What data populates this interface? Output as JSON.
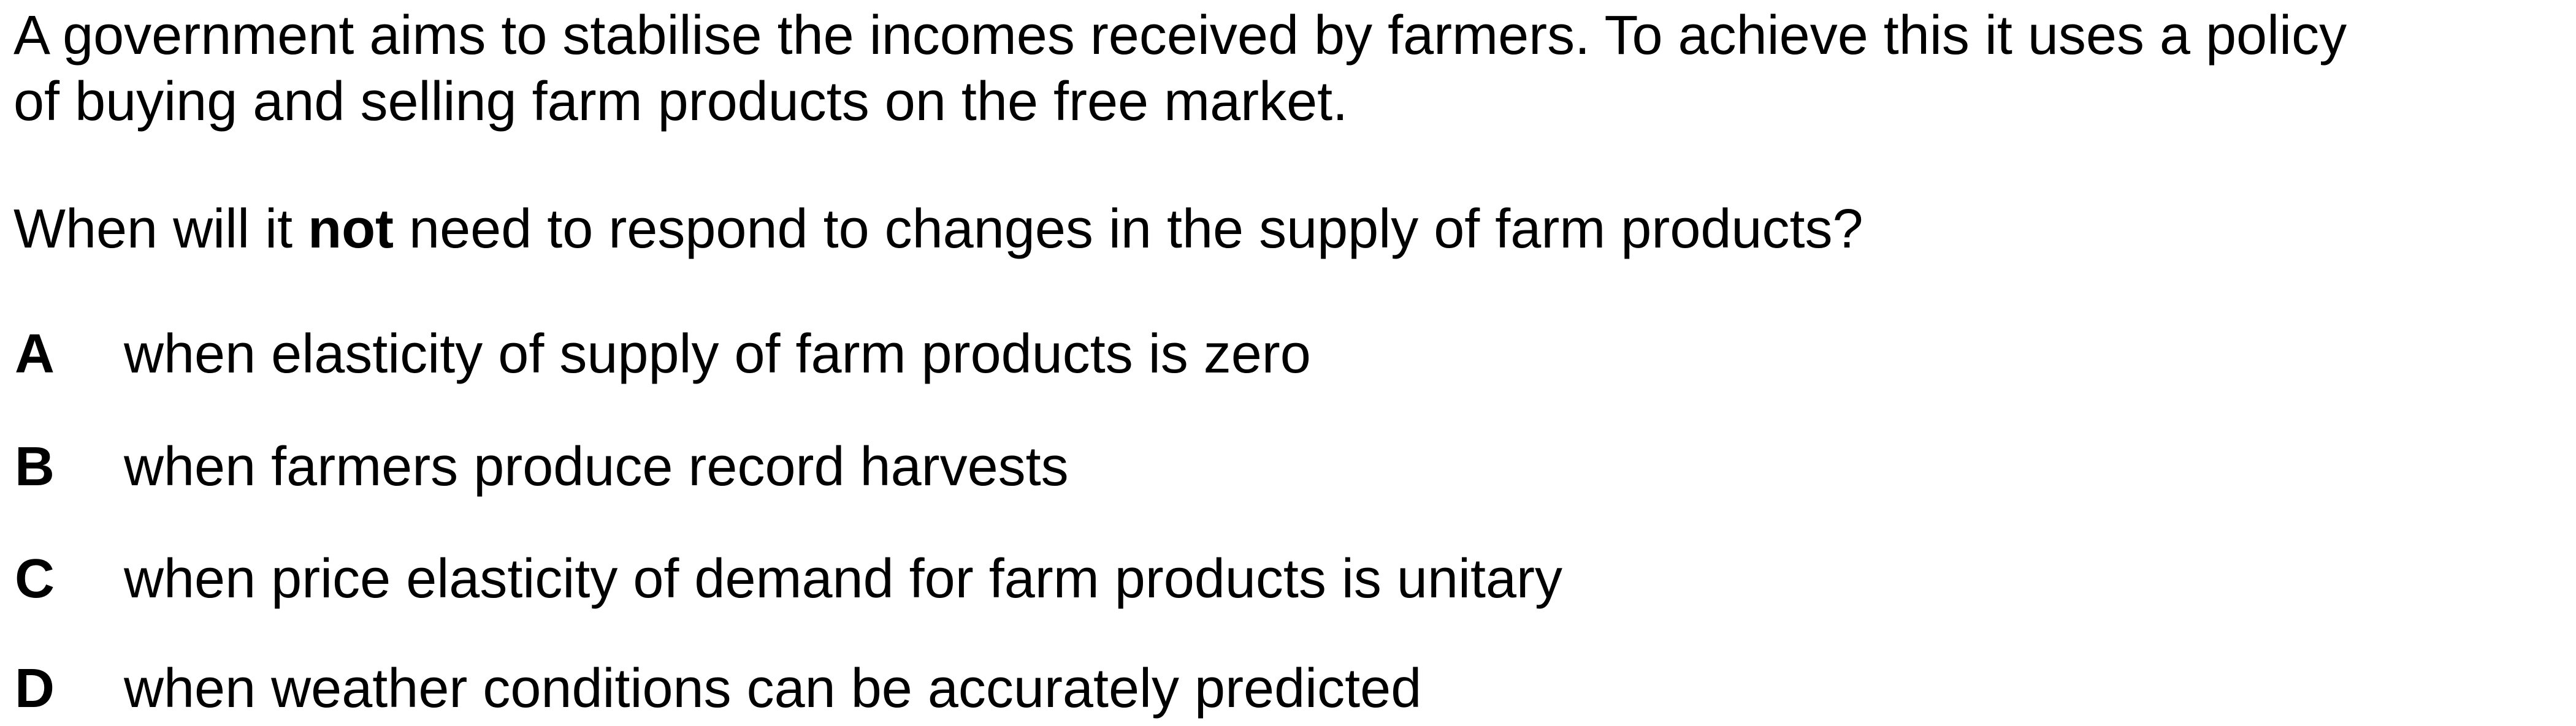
{
  "stem": {
    "line1": "A government aims to stabilise the incomes received by farmers. To achieve this it uses a policy",
    "line2": "of buying and selling farm products on the free market."
  },
  "question": {
    "before": "When will it ",
    "emphasis": "not",
    "after": " need to respond to changes in the supply of farm products?"
  },
  "options": [
    {
      "letter": "A",
      "text": "when elasticity of supply of farm products is zero"
    },
    {
      "letter": "B",
      "text": "when farmers produce record harvests"
    },
    {
      "letter": "C",
      "text": "when price elasticity of demand for farm products is unitary"
    },
    {
      "letter": "D",
      "text": "when weather conditions can be accurately predicted"
    }
  ]
}
